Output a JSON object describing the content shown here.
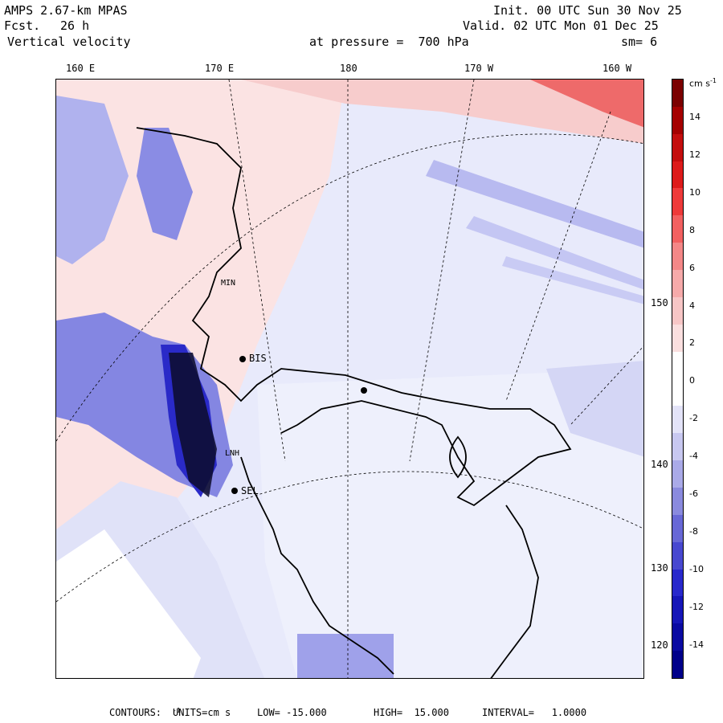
{
  "header": {
    "model": "AMPS 2.67-km MPAS",
    "fcst_label": "Fcst.",
    "fcst_value": "26 h",
    "field": "Vertical velocity",
    "init": "Init. 00 UTC Sun 30 Nov 25",
    "valid": "Valid. 02 UTC Mon 01 Dec 25",
    "pressure": "at pressure =  700 hPa",
    "smooth": "sm= 6"
  },
  "top_longitudes": [
    "160 E",
    "170 E",
    "180",
    "170 W",
    "160 W"
  ],
  "right_latitudes": [
    "150 W",
    "140 W",
    "130 W",
    "120 W"
  ],
  "stations": [
    "BIS",
    "SEL",
    "LNH",
    "MIN"
  ],
  "colorbar": {
    "units": "cm s",
    "units_exp": "-1",
    "ticks": [
      "14",
      "12",
      "10",
      "8",
      "6",
      "4",
      "2",
      "0",
      "-2",
      "-4",
      "-6",
      "-8",
      "-10",
      "-12",
      "-14"
    ],
    "colors": [
      "#7b0000",
      "#a50000",
      "#c40d0d",
      "#dd1a1a",
      "#ee3a3a",
      "#f26060",
      "#f48787",
      "#f6aaaa",
      "#f7c6c6",
      "#fadfdf",
      "#ffffff",
      "#ffffff",
      "#e3e3f8",
      "#c8c8f0",
      "#aaaae8",
      "#8a8ade",
      "#6868d6",
      "#4848d0",
      "#2828cc",
      "#1616b8",
      "#0a0aa2",
      "#00008a"
    ]
  },
  "footer": {
    "contours": "CONTOURS:",
    "units": "UNITS=cm s",
    "units_exp": "-1",
    "low": "LOW= -15.000",
    "high": "HIGH=  15.000",
    "interval": "INTERVAL=   1.0000"
  }
}
